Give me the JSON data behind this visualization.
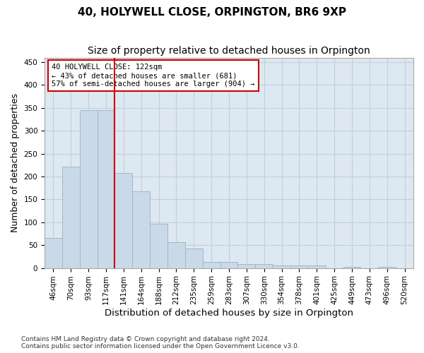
{
  "title": "40, HOLYWELL CLOSE, ORPINGTON, BR6 9XP",
  "subtitle": "Size of property relative to detached houses in Orpington",
  "xlabel": "Distribution of detached houses by size in Orpington",
  "ylabel": "Number of detached properties",
  "bin_labels": [
    "46sqm",
    "70sqm",
    "93sqm",
    "117sqm",
    "141sqm",
    "164sqm",
    "188sqm",
    "212sqm",
    "235sqm",
    "259sqm",
    "283sqm",
    "307sqm",
    "330sqm",
    "354sqm",
    "378sqm",
    "401sqm",
    "425sqm",
    "449sqm",
    "473sqm",
    "496sqm",
    "520sqm"
  ],
  "bar_values": [
    65,
    222,
    345,
    345,
    207,
    167,
    97,
    57,
    42,
    13,
    13,
    8,
    8,
    6,
    5,
    5,
    0,
    3,
    0,
    3,
    0
  ],
  "bar_color": "#c9d9e8",
  "bar_edge_color": "#a0b8cc",
  "vline_x": 3.5,
  "vline_color": "#cc0000",
  "annotation_text": "40 HOLYWELL CLOSE: 122sqm\n← 43% of detached houses are smaller (681)\n57% of semi-detached houses are larger (904) →",
  "annotation_box_color": "#ffffff",
  "annotation_box_edge": "#cc0000",
  "ylim": [
    0,
    460
  ],
  "yticks": [
    0,
    50,
    100,
    150,
    200,
    250,
    300,
    350,
    400,
    450
  ],
  "grid_color": "#c0cfe0",
  "background_color": "#dde8f0",
  "footer_line1": "Contains HM Land Registry data © Crown copyright and database right 2024.",
  "footer_line2": "Contains public sector information licensed under the Open Government Licence v3.0.",
  "title_fontsize": 11,
  "subtitle_fontsize": 10,
  "tick_fontsize": 7.5,
  "ylabel_fontsize": 9,
  "xlabel_fontsize": 9.5
}
